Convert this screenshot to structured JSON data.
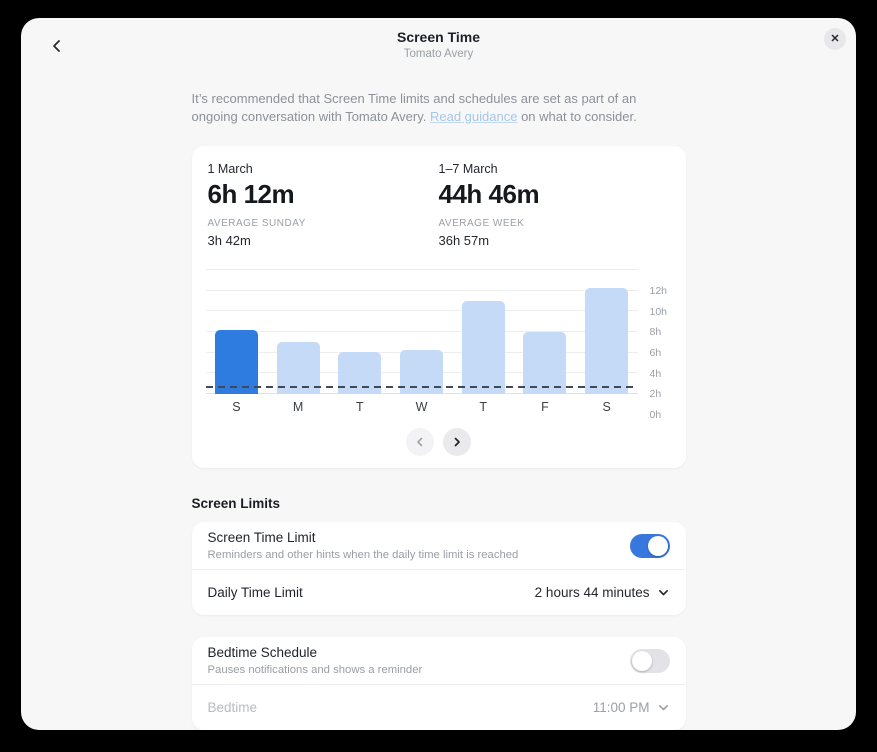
{
  "dialog": {
    "title": "Screen Time",
    "subtitle": "Tomato Avery"
  },
  "intro": {
    "before_link": "It’s recommended that Screen Time limits and schedules are set as part of an ongoing conversation with Tomato Avery. ",
    "link_text": "Read guidance",
    "after_link": " on what to consider."
  },
  "usage": {
    "day_label": "1 March",
    "day_total": "6h 12m",
    "day_avg_label": "AVERAGE SUNDAY",
    "day_avg_value": "3h 42m",
    "week_label": "1–7 March",
    "week_total": "44h 46m",
    "week_avg_label": "AVERAGE WEEK",
    "week_avg_value": "36h 57m"
  },
  "chart_data": {
    "type": "bar",
    "categories": [
      "S",
      "M",
      "T",
      "W",
      "T",
      "F",
      "S"
    ],
    "values": [
      6.2,
      5.0,
      4.1,
      4.3,
      9.0,
      6.0,
      10.3
    ],
    "highlight_index": 0,
    "average_line_hours": 2.73,
    "ylim": [
      0,
      12
    ],
    "y_tick_step": 2,
    "y_tick_suffix": "h",
    "grid": true,
    "legend": "none",
    "colors": {
      "bar": "#c5daf6",
      "bar_highlight": "#2e7ce0",
      "average_line": "#3c4a59"
    }
  },
  "screen_limits": {
    "heading": "Screen Limits",
    "limit_title": "Screen Time Limit",
    "limit_subtitle": "Reminders and other hints when the daily time limit is reached",
    "limit_enabled": true,
    "daily_label": "Daily Time Limit",
    "daily_value": "2 hours 44 minutes"
  },
  "bedtime": {
    "schedule_title": "Bedtime Schedule",
    "schedule_subtitle": "Pauses notifications and shows a reminder",
    "schedule_enabled": false,
    "bedtime_label": "Bedtime",
    "bedtime_value": "11:00 PM"
  }
}
